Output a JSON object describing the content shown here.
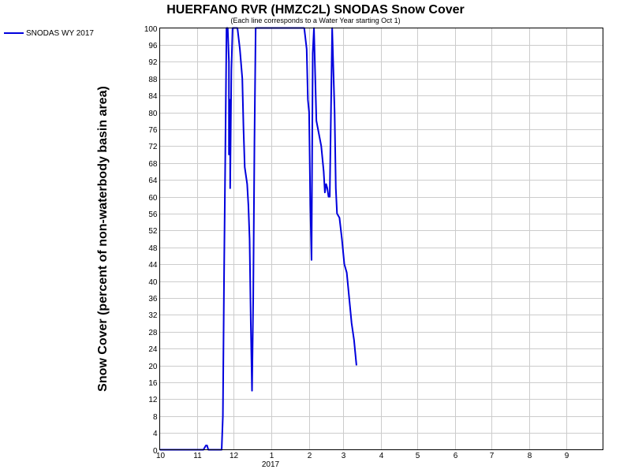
{
  "chart_data": {
    "type": "line",
    "title": "HUERFANO RVR (HMZC2L) SNODAS Snow Cover",
    "subtitle": "(Each line corresponds to a Water Year starting Oct 1)",
    "ylabel": "Snow Cover (percent of non-waterbody basin area)",
    "xlabel": "",
    "ylim": [
      0,
      100
    ],
    "yticks": [
      0,
      4,
      8,
      12,
      16,
      20,
      24,
      28,
      32,
      36,
      40,
      44,
      48,
      52,
      56,
      60,
      64,
      68,
      72,
      76,
      80,
      84,
      88,
      92,
      96,
      100
    ],
    "xlim": [
      "2016-10-01",
      "2017-10-01"
    ],
    "xticks": [
      {
        "date": "2016-10-01",
        "label": "10"
      },
      {
        "date": "2016-11-01",
        "label": "11"
      },
      {
        "date": "2016-12-01",
        "label": "12"
      },
      {
        "date": "2017-01-01",
        "label": "1"
      },
      {
        "date": "2017-02-01",
        "label": "2"
      },
      {
        "date": "2017-03-01",
        "label": "3"
      },
      {
        "date": "2017-04-01",
        "label": "4"
      },
      {
        "date": "2017-05-01",
        "label": "5"
      },
      {
        "date": "2017-06-01",
        "label": "6"
      },
      {
        "date": "2017-07-01",
        "label": "7"
      },
      {
        "date": "2017-08-01",
        "label": "8"
      },
      {
        "date": "2017-09-01",
        "label": "9"
      }
    ],
    "year_label": "2017",
    "grid": true,
    "legend_position": "top-left",
    "series": [
      {
        "name": "SNODAS WY 2017",
        "color": "#0000dd",
        "points": [
          [
            "2016-10-01",
            0
          ],
          [
            "2016-11-06",
            0
          ],
          [
            "2016-11-08",
            1.0
          ],
          [
            "2016-11-09",
            1.0
          ],
          [
            "2016-11-10",
            0
          ],
          [
            "2016-11-21",
            0
          ],
          [
            "2016-11-22",
            8
          ],
          [
            "2016-11-23",
            42
          ],
          [
            "2016-11-24",
            70
          ],
          [
            "2016-11-25",
            100
          ],
          [
            "2016-11-26",
            100
          ],
          [
            "2016-11-27",
            92
          ],
          [
            "2016-11-27",
            70
          ],
          [
            "2016-11-28",
            83
          ],
          [
            "2016-11-28",
            62
          ],
          [
            "2016-11-29",
            90
          ],
          [
            "2016-11-30",
            100
          ],
          [
            "2016-12-04",
            100
          ],
          [
            "2016-12-06",
            95
          ],
          [
            "2016-12-08",
            88
          ],
          [
            "2016-12-09",
            76
          ],
          [
            "2016-12-10",
            67
          ],
          [
            "2016-12-12",
            63
          ],
          [
            "2016-12-13",
            58
          ],
          [
            "2016-12-14",
            50
          ],
          [
            "2016-12-15",
            30
          ],
          [
            "2016-12-16",
            14
          ],
          [
            "2016-12-17",
            36
          ],
          [
            "2016-12-18",
            73
          ],
          [
            "2016-12-19",
            100
          ],
          [
            "2017-01-28",
            100
          ],
          [
            "2017-01-30",
            95
          ],
          [
            "2017-01-31",
            83
          ],
          [
            "2017-02-01",
            80
          ],
          [
            "2017-02-02",
            58
          ],
          [
            "2017-02-03",
            45
          ],
          [
            "2017-02-04",
            94
          ],
          [
            "2017-02-05",
            100
          ],
          [
            "2017-02-06",
            89
          ],
          [
            "2017-02-07",
            78
          ],
          [
            "2017-02-09",
            75
          ],
          [
            "2017-02-11",
            72
          ],
          [
            "2017-02-13",
            66
          ],
          [
            "2017-02-14",
            61
          ],
          [
            "2017-02-15",
            63
          ],
          [
            "2017-02-16",
            62
          ],
          [
            "2017-02-17",
            60
          ],
          [
            "2017-02-18",
            60
          ],
          [
            "2017-02-19",
            80
          ],
          [
            "2017-02-20",
            100
          ],
          [
            "2017-02-22",
            80
          ],
          [
            "2017-02-23",
            62
          ],
          [
            "2017-02-24",
            56
          ],
          [
            "2017-02-26",
            55
          ],
          [
            "2017-02-28",
            50
          ],
          [
            "2017-03-02",
            44
          ],
          [
            "2017-03-04",
            42
          ],
          [
            "2017-03-06",
            36
          ],
          [
            "2017-03-08",
            30
          ],
          [
            "2017-03-10",
            26
          ],
          [
            "2017-03-12",
            20
          ]
        ]
      }
    ]
  }
}
